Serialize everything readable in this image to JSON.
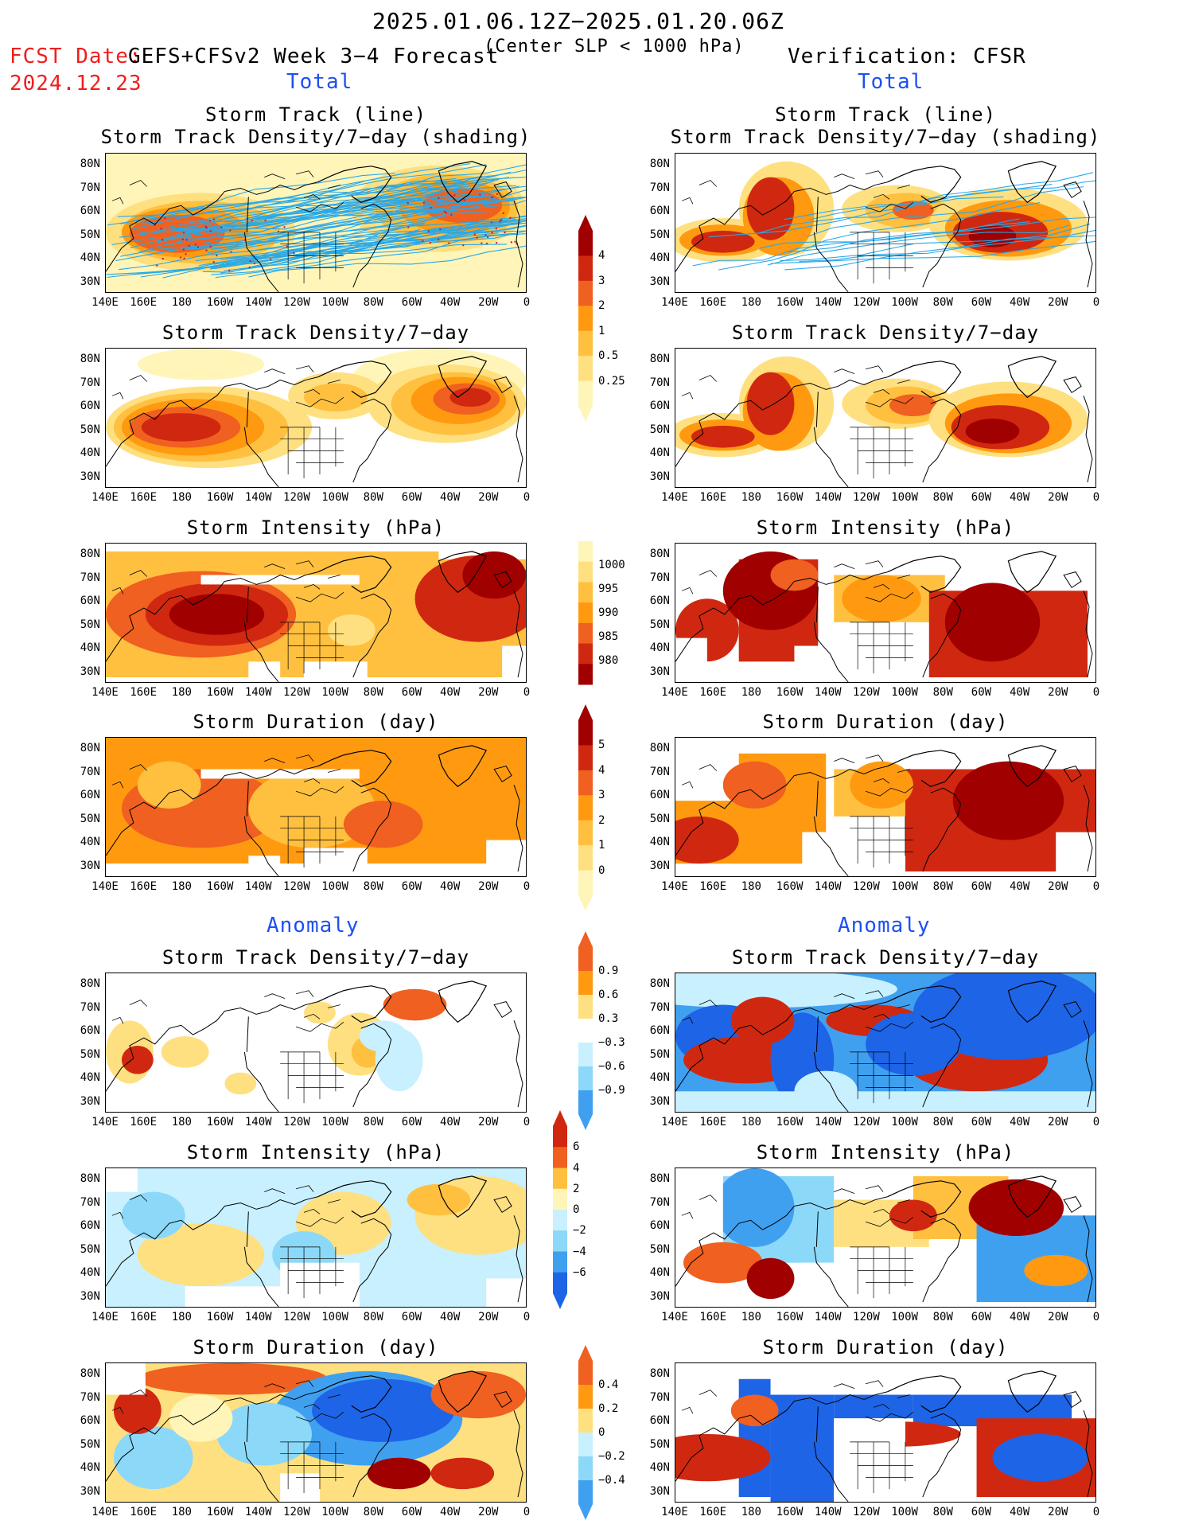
{
  "header": {
    "title": "2025.01.06.12Z−2025.01.20.06Z",
    "fcst_label": "FCST Date:",
    "fcst_date": "2024.12.23",
    "model": "GEFS+CFSv2 Week 3−4 Forecast",
    "criterion": "(Center SLP < 1000 hPa)",
    "verification": "Verification: CFSR"
  },
  "sections": {
    "total": "Total",
    "anomaly": "Anomaly"
  },
  "panel_titles": {
    "track_line": "Storm Track (line)",
    "track_density_shading": "Storm Track Density/7−day (shading)",
    "track_density": "Storm Track Density/7−day",
    "intensity": "Storm Intensity (hPa)",
    "duration": "Storm Duration (day)"
  },
  "axes": {
    "lat_labels": [
      "80N",
      "70N",
      "60N",
      "50N",
      "40N",
      "30N"
    ],
    "lon_labels": [
      "140E",
      "160E",
      "180",
      "160W",
      "140W",
      "120W",
      "100W",
      "80W",
      "60W",
      "40W",
      "20W",
      "0"
    ]
  },
  "colorbars": {
    "density": [
      "4",
      "3",
      "2",
      "1",
      "0.5",
      "0.25"
    ],
    "intensity": [
      "1000",
      "995",
      "990",
      "985",
      "980"
    ],
    "duration": [
      "5",
      "4",
      "3",
      "2",
      "1",
      "0"
    ],
    "density_anom": [
      "0.9",
      "0.6",
      "0.3",
      "−0.3",
      "−0.6",
      "−0.9"
    ],
    "intensity_anom": [
      "6",
      "4",
      "2",
      "0",
      "−2",
      "−4",
      "−6"
    ],
    "duration_anom": [
      "0.4",
      "0.2",
      "0",
      "−0.2",
      "−0.4"
    ]
  },
  "colors": {
    "warm": [
      "#fff5b8",
      "#ffe080",
      "#ffc040",
      "#ff9a10",
      "#f06020",
      "#d02810",
      "#a00000"
    ],
    "cool": [
      "#c8f0ff",
      "#8cd8f8",
      "#40a0f0",
      "#1e64e6"
    ],
    "track_line": "#29a8e8",
    "title_red": "#f01e1e",
    "section_blue": "#1e50f0"
  }
}
